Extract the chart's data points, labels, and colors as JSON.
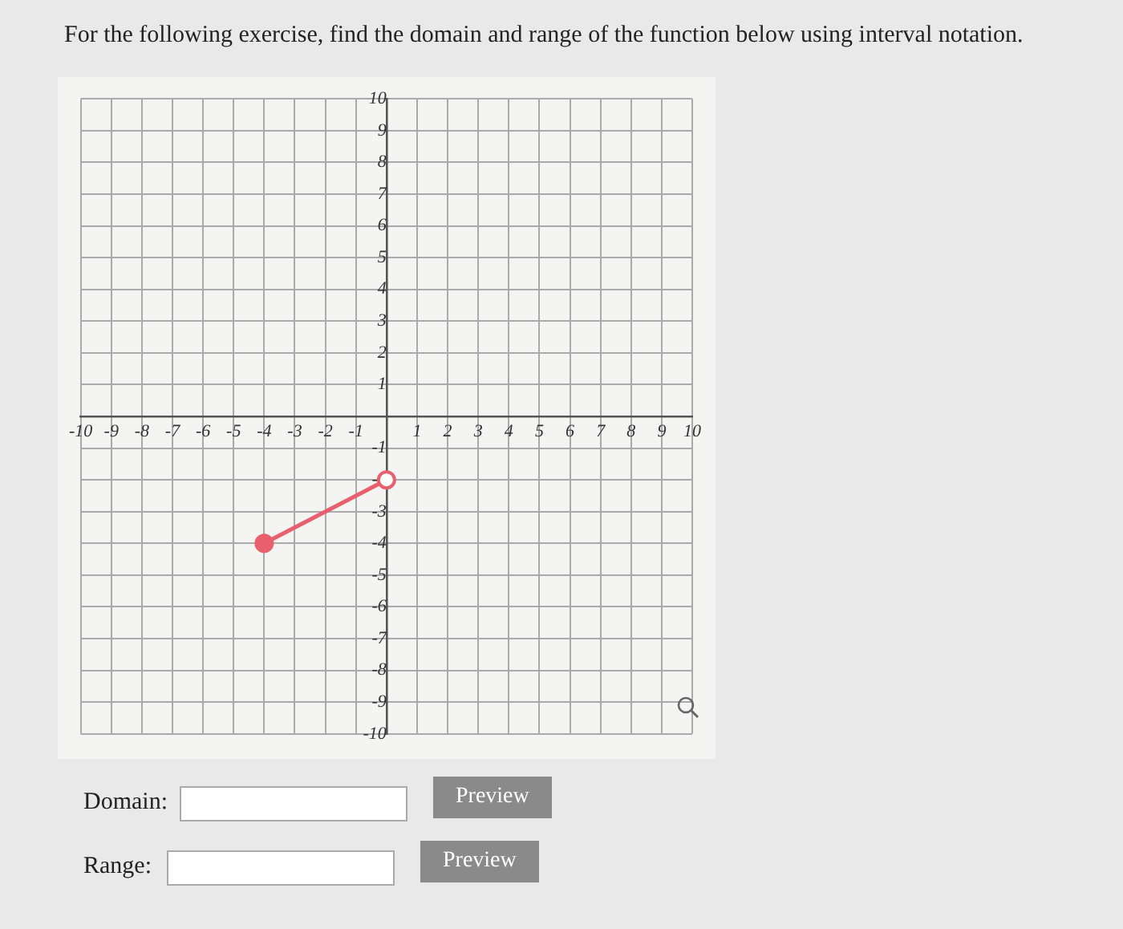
{
  "chart_data": {
    "type": "line",
    "title": "For the following exercise, find the domain and range of the function below using interval notation.",
    "series": [
      {
        "type": "line",
        "x": [
          -4,
          0
        ],
        "values": [
          -4,
          -2
        ],
        "color": "#e8606e"
      }
    ],
    "xlim": [
      -10,
      10
    ],
    "ylim": [
      -10,
      10
    ],
    "xticks": [
      -10,
      -9,
      -8,
      -7,
      -6,
      -5,
      -4,
      -3,
      -2,
      -1,
      {
        "value": 0,
        "label": null
      },
      1,
      2,
      3,
      4,
      5,
      6,
      7,
      8,
      9,
      10
    ],
    "yticks": [
      -10,
      -9,
      -8,
      -7,
      -6,
      -5,
      -4,
      -3,
      -2,
      -1,
      {
        "value": 0,
        "label": null
      },
      1,
      2,
      3,
      4,
      5,
      6,
      7,
      8,
      9,
      10
    ],
    "grid": true,
    "legend": false,
    "marker": "circle",
    "line_style": "solid",
    "annotations": [
      "Domain:",
      "Preview",
      "Range:",
      "Preview"
    ]
  }
}
